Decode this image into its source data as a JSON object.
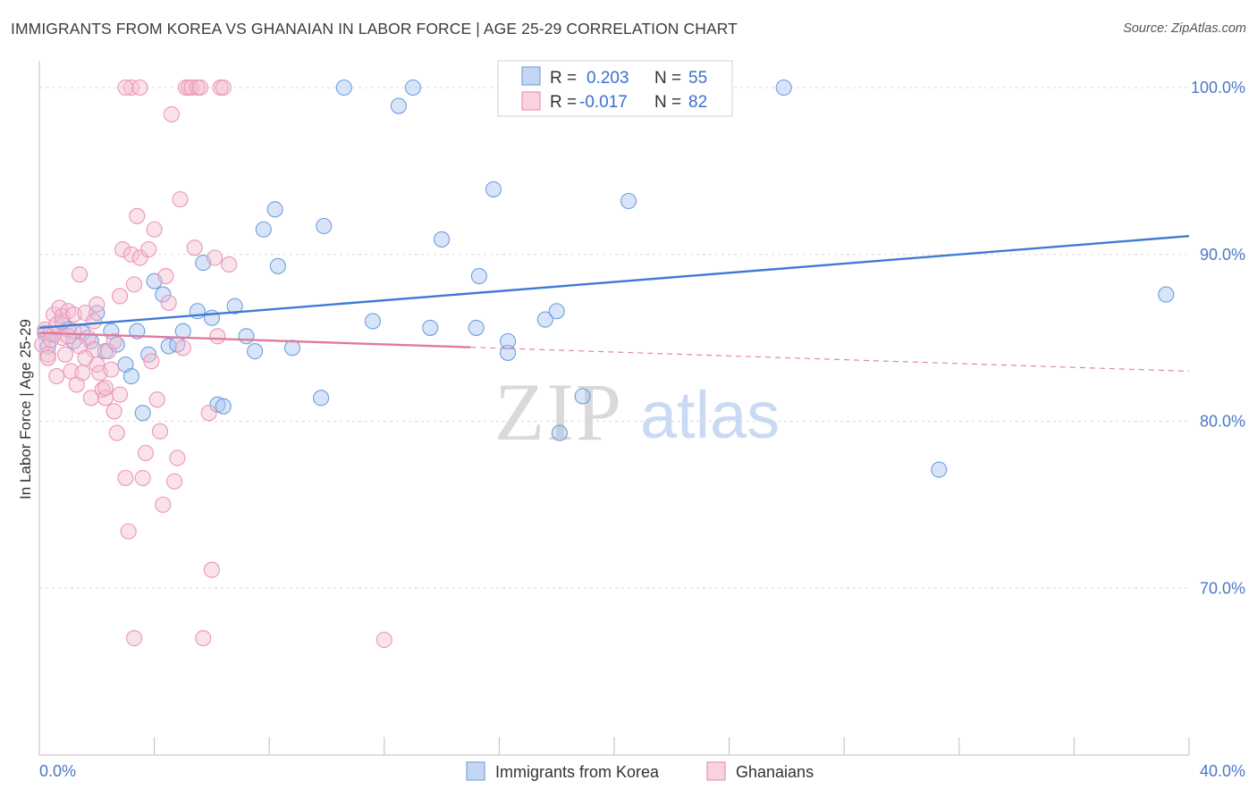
{
  "title": "IMMIGRANTS FROM KOREA VS GHANAIAN IN LABOR FORCE | AGE 25-29 CORRELATION CHART",
  "source": "Source: ZipAtlas.com",
  "colors": {
    "blue": "#3f7ad6",
    "blue_fill": "#a9c6ef",
    "pink": "#e07aa0",
    "pink_fill": "#f5bfd2",
    "grid": "#d9d9d9",
    "axis_text": "#4a78c8"
  },
  "legend": {
    "r_label": "R =",
    "n_label": "N =",
    "series1_r": "0.203",
    "series1_n": "55",
    "series2_r": "-0.017",
    "series2_n": "82"
  },
  "watermark": {
    "part1": "ZIP",
    "part2": "atlas"
  },
  "chart_data": {
    "type": "scatter",
    "title": "IMMIGRANTS FROM KOREA VS GHANAIAN IN LABOR FORCE | AGE 25-29 CORRELATION CHART",
    "xlabel": "",
    "ylabel": "In Labor Force | Age 25-29",
    "xlim": [
      0,
      40
    ],
    "ylim": [
      60,
      101.5
    ],
    "x_tick_labels": [
      "0.0%",
      "40.0%"
    ],
    "y_ticks": [
      70,
      80,
      90,
      100
    ],
    "y_tick_labels": [
      "70.0%",
      "80.0%",
      "90.0%",
      "100.0%"
    ],
    "grid": true,
    "legend_position": "top-center",
    "series": [
      {
        "name": "Immigrants from Korea",
        "color": "blue",
        "r": 0.203,
        "n": 55,
        "trend": {
          "x0": 0.0,
          "y0": 85.6,
          "x1": 40.0,
          "y1": 91.1,
          "dashed_from": null
        },
        "points": [
          [
            0.3,
            84.5
          ],
          [
            0.5,
            85.2
          ],
          [
            0.8,
            86.0
          ],
          [
            1.0,
            85.5
          ],
          [
            1.2,
            84.8
          ],
          [
            1.5,
            85.3
          ],
          [
            1.8,
            84.8
          ],
          [
            2.0,
            86.5
          ],
          [
            2.3,
            84.2
          ],
          [
            2.5,
            85.4
          ],
          [
            2.7,
            84.6
          ],
          [
            3.0,
            83.4
          ],
          [
            3.2,
            82.7
          ],
          [
            3.4,
            85.4
          ],
          [
            3.6,
            80.5
          ],
          [
            3.8,
            84.0
          ],
          [
            4.0,
            88.4
          ],
          [
            4.3,
            87.6
          ],
          [
            4.5,
            84.5
          ],
          [
            4.8,
            84.6
          ],
          [
            5.0,
            85.4
          ],
          [
            5.5,
            86.6
          ],
          [
            5.7,
            89.5
          ],
          [
            6.0,
            86.2
          ],
          [
            6.2,
            81.0
          ],
          [
            6.4,
            80.9
          ],
          [
            6.8,
            86.9
          ],
          [
            7.2,
            85.1
          ],
          [
            7.5,
            84.2
          ],
          [
            7.8,
            91.5
          ],
          [
            8.2,
            92.7
          ],
          [
            8.3,
            89.3
          ],
          [
            8.8,
            84.4
          ],
          [
            9.8,
            81.4
          ],
          [
            9.9,
            91.7
          ],
          [
            10.6,
            100.0
          ],
          [
            11.6,
            86.0
          ],
          [
            12.5,
            98.9
          ],
          [
            13.0,
            100.0
          ],
          [
            13.6,
            85.6
          ],
          [
            14.0,
            90.9
          ],
          [
            15.2,
            85.6
          ],
          [
            15.3,
            88.7
          ],
          [
            15.8,
            93.9
          ],
          [
            16.3,
            84.1
          ],
          [
            16.3,
            84.8
          ],
          [
            17.6,
            86.1
          ],
          [
            18.0,
            86.6
          ],
          [
            18.1,
            79.3
          ],
          [
            18.9,
            81.5
          ],
          [
            20.5,
            93.2
          ],
          [
            25.9,
            100.0
          ],
          [
            31.3,
            77.1
          ],
          [
            39.2,
            87.6
          ],
          [
            0.2,
            85.3
          ]
        ]
      },
      {
        "name": "Ghanaians",
        "color": "pink",
        "r": -0.017,
        "n": 82,
        "trend": {
          "x0": 0.0,
          "y0": 85.3,
          "x1": 40.0,
          "y1": 83.0,
          "dashed_from": 15.0
        },
        "points": [
          [
            0.1,
            84.6
          ],
          [
            0.2,
            85.5
          ],
          [
            0.3,
            84.0
          ],
          [
            0.4,
            85.3
          ],
          [
            0.5,
            86.4
          ],
          [
            0.6,
            85.8
          ],
          [
            0.7,
            86.8
          ],
          [
            0.8,
            86.3
          ],
          [
            0.9,
            84.0
          ],
          [
            1.0,
            86.6
          ],
          [
            1.1,
            83.0
          ],
          [
            1.2,
            86.4
          ],
          [
            1.3,
            82.2
          ],
          [
            1.4,
            88.8
          ],
          [
            1.5,
            82.9
          ],
          [
            1.6,
            86.5
          ],
          [
            1.7,
            85.0
          ],
          [
            1.8,
            81.4
          ],
          [
            1.9,
            84.3
          ],
          [
            2.0,
            83.4
          ],
          [
            2.1,
            82.9
          ],
          [
            2.2,
            81.9
          ],
          [
            2.3,
            81.4
          ],
          [
            2.4,
            84.2
          ],
          [
            2.5,
            83.1
          ],
          [
            2.6,
            80.6
          ],
          [
            2.7,
            79.3
          ],
          [
            2.8,
            87.5
          ],
          [
            2.9,
            90.3
          ],
          [
            3.0,
            76.6
          ],
          [
            3.1,
            73.4
          ],
          [
            3.2,
            90.0
          ],
          [
            3.3,
            88.2
          ],
          [
            3.4,
            92.3
          ],
          [
            3.5,
            89.8
          ],
          [
            3.6,
            76.6
          ],
          [
            3.7,
            78.1
          ],
          [
            3.8,
            90.3
          ],
          [
            3.9,
            83.6
          ],
          [
            4.0,
            91.5
          ],
          [
            4.1,
            81.3
          ],
          [
            4.2,
            79.4
          ],
          [
            4.3,
            75.0
          ],
          [
            4.4,
            88.7
          ],
          [
            4.5,
            87.1
          ],
          [
            4.6,
            98.4
          ],
          [
            4.7,
            76.4
          ],
          [
            4.8,
            77.8
          ],
          [
            4.9,
            93.3
          ],
          [
            5.0,
            84.4
          ],
          [
            5.1,
            100.0
          ],
          [
            5.2,
            100.0
          ],
          [
            5.3,
            100.0
          ],
          [
            5.4,
            90.4
          ],
          [
            5.5,
            100.0
          ],
          [
            5.6,
            100.0
          ],
          [
            5.7,
            67.0
          ],
          [
            5.9,
            80.5
          ],
          [
            6.0,
            71.1
          ],
          [
            6.1,
            89.8
          ],
          [
            6.2,
            85.1
          ],
          [
            6.3,
            100.0
          ],
          [
            6.4,
            100.0
          ],
          [
            6.6,
            89.4
          ],
          [
            3.3,
            67.0
          ],
          [
            3.2,
            100.0
          ],
          [
            3.0,
            100.0
          ],
          [
            12.0,
            66.9
          ],
          [
            1.4,
            84.5
          ],
          [
            0.8,
            85.0
          ],
          [
            2.3,
            82.0
          ],
          [
            1.9,
            86.0
          ],
          [
            2.6,
            84.8
          ],
          [
            3.5,
            100.0
          ],
          [
            0.3,
            83.8
          ],
          [
            0.6,
            82.7
          ],
          [
            1.2,
            85.4
          ],
          [
            2.0,
            87.0
          ],
          [
            1.6,
            83.8
          ],
          [
            2.8,
            81.6
          ],
          [
            0.4,
            84.9
          ],
          [
            1.0,
            85.1
          ]
        ]
      }
    ]
  }
}
